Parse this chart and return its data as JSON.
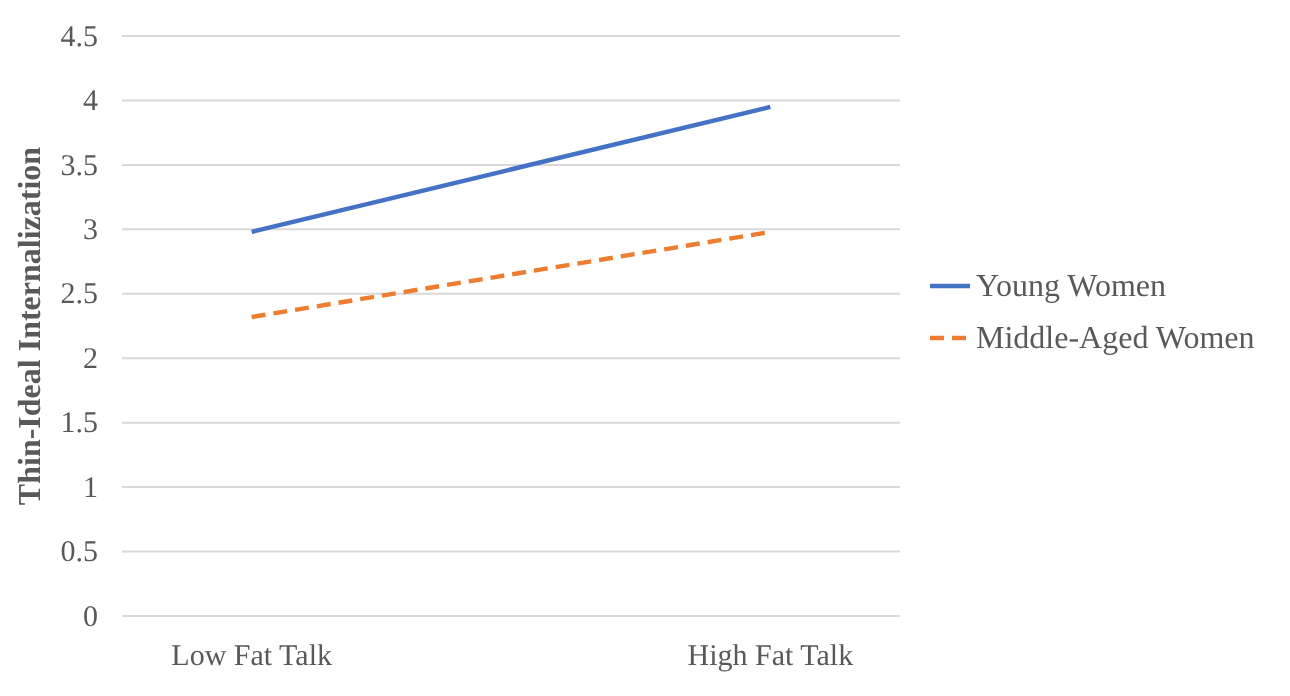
{
  "chart_data": {
    "type": "line",
    "ylabel": "Thin-Ideal Internalization",
    "categories": [
      "Low Fat Talk",
      "High Fat Talk"
    ],
    "series": [
      {
        "name": "Young Women",
        "color": "#4472c4",
        "values": [
          2.98,
          3.95
        ],
        "line_style": "solid"
      },
      {
        "name": "Middle-Aged Women",
        "color": "#ed7d31",
        "values": [
          2.32,
          2.98
        ],
        "line_style": "dashed"
      }
    ],
    "ylim": [
      0,
      4.5
    ],
    "yticks": [
      0,
      0.5,
      1,
      1.5,
      2,
      2.5,
      3,
      3.5,
      4,
      4.5
    ],
    "grid": "y",
    "legend": "right",
    "marker": "none"
  }
}
